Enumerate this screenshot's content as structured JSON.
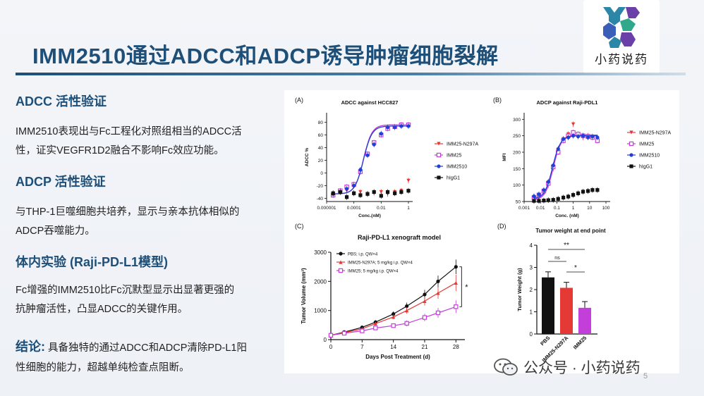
{
  "slide": {
    "title": "IMM2510通过ADCC和ADCP诱导肿瘤细胞裂解",
    "logo_text": "小药说药",
    "watermark": "公众号 · 小药说药",
    "page_number": "5"
  },
  "sections": {
    "adcc_heading": "ADCC 活性验证",
    "adcc_line1": "IMM2510表现出与Fc工程化对照组相当的ADCC活",
    "adcc_line2": "性，证实VEGFR1D2融合不影响Fc效应功能。",
    "adcp_heading": "ADCP 活性验证",
    "adcp_line1": "与THP-1巨噬细胞共培养，显示与亲本抗体相似的",
    "adcp_line2": "ADCP吞噬能力。",
    "invivo_heading": "体内实验 (Raji-PD-L1模型)",
    "invivo_line1": "Fc增强的IMM2510比Fc沉默型显示出显著更强的",
    "invivo_line2": "抗肿瘤活性，凸显ADCC的关键作用。",
    "conclusion_label": "结论:",
    "conclusion_line1": " 具备独特的通过ADCC和ADCP清除PD-L1阳",
    "conclusion_line2": "性细胞的能力，超越单纯检查点阻断。"
  },
  "colors": {
    "IMM25-N297A": "#e53935",
    "IMM25": "#c33fd9",
    "IMM2510": "#1f3fd6",
    "hIgG1": "#111111",
    "PBS": "#111111"
  },
  "chart_data": [
    {
      "panel": "(A)",
      "type": "scatter",
      "title": "ADCC against HCC827",
      "xlabel": "Conc.(nM)",
      "ylabel": "ADCC %",
      "xscale": "log",
      "xticks": [
        "0.000001",
        "0.0001",
        "0.01",
        "1"
      ],
      "yticks": [
        -40,
        -20,
        0,
        20,
        40,
        60,
        80
      ],
      "ylim": [
        -45,
        95
      ],
      "legend": "right",
      "x": [
        3e-06,
        1e-05,
        3e-05,
        0.0001,
        0.0003,
        0.001,
        0.003,
        0.01,
        0.03,
        0.1,
        0.3,
        1
      ],
      "series": [
        {
          "name": "IMM25-N297A",
          "marker": "triangle-down",
          "values": [
            -32,
            -30,
            -28,
            -32,
            -30,
            -33,
            -31,
            -30,
            -33,
            -30,
            -28,
            -12
          ]
        },
        {
          "name": "IMM25",
          "marker": "square-open",
          "values": [
            -35,
            -28,
            -22,
            -18,
            2,
            30,
            48,
            60,
            70,
            73,
            76,
            76
          ]
        },
        {
          "name": "IMM2510",
          "marker": "circle",
          "values": [
            -33,
            -30,
            -25,
            -20,
            5,
            28,
            45,
            62,
            72,
            72,
            74,
            74
          ]
        },
        {
          "name": "hIgG1",
          "marker": "square",
          "values": [
            -32,
            -30,
            -38,
            -32,
            -35,
            -33,
            -30,
            -36,
            -30,
            -32,
            -30,
            -28
          ]
        }
      ]
    },
    {
      "panel": "(B)",
      "type": "scatter",
      "title": "ADCP against Raji-PDL1",
      "xlabel": "Conc. (nM)",
      "ylabel": "MFI",
      "xscale": "log",
      "xticks": [
        "0.001",
        "0.01",
        "0.1",
        "1",
        "10",
        "100"
      ],
      "yticks": [
        50,
        100,
        150,
        200,
        250,
        300
      ],
      "ylim": [
        50,
        320
      ],
      "legend": "right",
      "x": [
        0.004,
        0.008,
        0.016,
        0.03,
        0.06,
        0.12,
        0.25,
        0.5,
        1,
        2,
        4,
        8,
        15,
        30
      ],
      "series": [
        {
          "name": "IMM25-N297A",
          "marker": "triangle-down",
          "values": [
            60,
            65,
            78,
            100,
            150,
            205,
            240,
            255,
            285,
            250,
            245,
            250,
            245,
            240
          ]
        },
        {
          "name": "IMM25",
          "marker": "square-open",
          "values": [
            62,
            70,
            82,
            105,
            155,
            200,
            235,
            250,
            260,
            255,
            250,
            248,
            245,
            235
          ]
        },
        {
          "name": "IMM2510",
          "marker": "circle",
          "values": [
            66,
            72,
            85,
            110,
            160,
            210,
            240,
            245,
            250,
            248,
            250,
            245,
            248,
            245
          ]
        },
        {
          "name": "hIgG1",
          "marker": "square",
          "values": [
            52,
            52,
            53,
            54,
            55,
            58,
            62,
            65,
            70,
            75,
            80,
            82,
            85,
            85
          ]
        }
      ]
    },
    {
      "panel": "(C)",
      "type": "line",
      "title": "Raji-PD-L1 xenograft model",
      "xlabel": "Days Post Treatment (d)",
      "ylabel": "Tumor Volume (mm³)",
      "xticks": [
        0,
        7,
        14,
        21,
        28
      ],
      "yticks": [
        0,
        1000,
        2000,
        3000
      ],
      "xlim": [
        0,
        30
      ],
      "ylim": [
        0,
        3000
      ],
      "legend": "top-left",
      "annotation": "*",
      "x": [
        0,
        3,
        7,
        10,
        14,
        17,
        21,
        24,
        28
      ],
      "series": [
        {
          "name": "PBS; i.p. QW×4",
          "marker": "circle",
          "values": [
            150,
            260,
            420,
            600,
            880,
            1150,
            1550,
            2000,
            2500
          ],
          "err": [
            30,
            40,
            50,
            70,
            90,
            120,
            160,
            200,
            250
          ]
        },
        {
          "name": "IMM25-N297A; 5 mg/kg i.p. QW×4",
          "marker": "triangle-up",
          "values": [
            150,
            240,
            370,
            550,
            780,
            1000,
            1320,
            1600,
            1950
          ],
          "err": [
            30,
            40,
            50,
            60,
            80,
            110,
            150,
            200,
            280
          ]
        },
        {
          "name": "IMM25; 5 mg/kg i.p. QW×4",
          "marker": "square-open",
          "values": [
            150,
            220,
            300,
            400,
            480,
            560,
            760,
            920,
            1130
          ],
          "err": [
            30,
            30,
            40,
            60,
            80,
            100,
            130,
            170,
            220
          ]
        }
      ]
    },
    {
      "panel": "(D)",
      "type": "bar",
      "title": "Tumor weight at end point",
      "ylabel": "Tumor Weight (g)",
      "categories": [
        "PBS",
        "IMM25-N297A",
        "IMM25"
      ],
      "values": [
        2.55,
        2.08,
        1.18
      ],
      "errors": [
        0.25,
        0.25,
        0.28
      ],
      "bar_colors": [
        "#111111",
        "#e53935",
        "#c33fd9"
      ],
      "yticks": [
        0,
        1,
        2,
        3,
        4
      ],
      "ylim": [
        0,
        4
      ],
      "annotations": [
        "**",
        "ns",
        "*"
      ]
    }
  ]
}
